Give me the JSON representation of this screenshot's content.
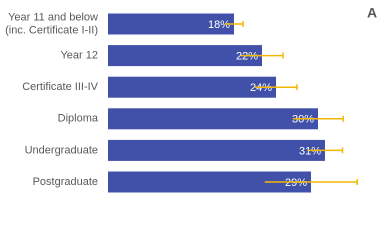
{
  "chart_data": {
    "type": "bar",
    "orientation": "horizontal",
    "panel_label": "A",
    "categories": [
      [
        "Year 11 and below",
        "(inc. Certificate I-II)"
      ],
      [
        "Year 12"
      ],
      [
        "Certificate III-IV"
      ],
      [
        "Diploma"
      ],
      [
        "Undergraduate"
      ],
      [
        "Postgraduate"
      ]
    ],
    "values": [
      18,
      22,
      24,
      30,
      31,
      29
    ],
    "value_labels": [
      "18%",
      "22%",
      "24%",
      "30%",
      "31%",
      "29%"
    ],
    "errors": [
      1.3,
      3,
      3,
      3.6,
      2.5,
      6.6
    ],
    "color": "#4150a8",
    "error_color": "#f2b705",
    "xlim": [
      0,
      40
    ]
  }
}
